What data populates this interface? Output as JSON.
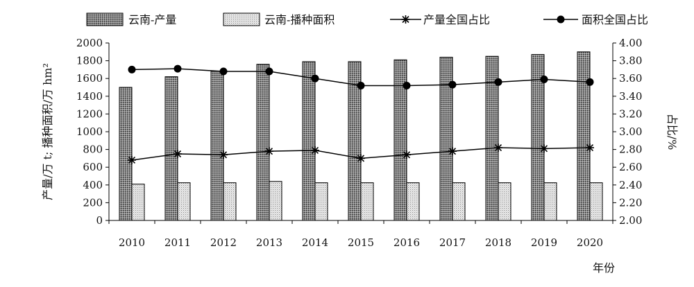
{
  "chart_data": {
    "type": "bar",
    "categories": [
      "2010",
      "2011",
      "2012",
      "2013",
      "2014",
      "2015",
      "2016",
      "2017",
      "2018",
      "2019",
      "2020"
    ],
    "series": [
      {
        "name": "云南-产量",
        "kind": "bar",
        "axis": "left",
        "pattern": "dark-dotted",
        "values": [
          1500,
          1620,
          1680,
          1760,
          1790,
          1790,
          1810,
          1840,
          1850,
          1870,
          1900
        ]
      },
      {
        "name": "云南-播种面积",
        "kind": "bar",
        "axis": "left",
        "pattern": "light-dotted",
        "values": [
          410,
          425,
          425,
          440,
          425,
          425,
          425,
          425,
          425,
          425,
          425
        ]
      },
      {
        "name": "产量全国占比",
        "kind": "line",
        "axis": "right",
        "marker": "asterisk",
        "values": [
          2.68,
          2.75,
          2.74,
          2.78,
          2.79,
          2.7,
          2.74,
          2.78,
          2.82,
          2.81,
          2.82
        ]
      },
      {
        "name": "面积全国占比",
        "kind": "line",
        "axis": "right",
        "marker": "circle",
        "values": [
          3.7,
          3.71,
          3.68,
          3.68,
          3.6,
          3.52,
          3.52,
          3.53,
          3.56,
          3.59,
          3.56
        ]
      }
    ],
    "yleft": {
      "label": "产量/万 t; 播种面积/万 hm²",
      "lim": [
        0,
        2000
      ],
      "ticks": [
        "0",
        "200",
        "400",
        "600",
        "800",
        "1000",
        "1200",
        "1400",
        "1600",
        "1800",
        "2000"
      ]
    },
    "yright": {
      "label": "占比/%",
      "lim": [
        2.0,
        4.0
      ],
      "ticks": [
        "2.00",
        "2.20",
        "2.40",
        "2.60",
        "2.80",
        "3.00",
        "3.20",
        "3.40",
        "3.60",
        "3.80",
        "4.00"
      ]
    },
    "xlabel": "年份",
    "grid": false,
    "legend": "top"
  }
}
